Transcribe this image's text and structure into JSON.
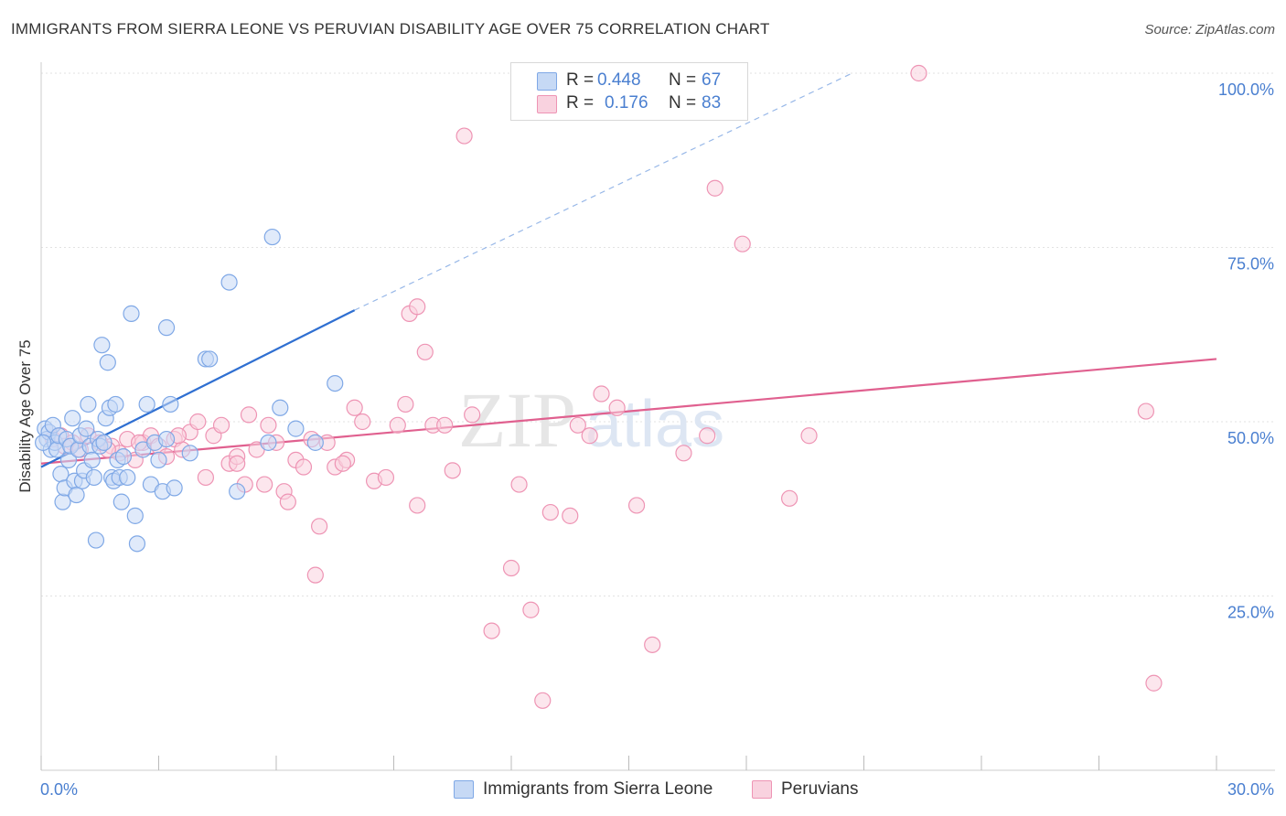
{
  "title": "IMMIGRANTS FROM SIERRA LEONE VS PERUVIAN DISABILITY AGE OVER 75 CORRELATION CHART",
  "source": "Source: ZipAtlas.com",
  "watermark": {
    "zip": "ZIP",
    "atlas": "atlas"
  },
  "legend": {
    "rows": [
      {
        "r_label": "R =",
        "r_value": "0.448",
        "n_label": "N =",
        "n_value": "67",
        "color": "#7fa8e6",
        "fill": "#c6d9f5"
      },
      {
        "r_label": "R =",
        "r_value": "0.176",
        "n_label": "N =",
        "n_value": "83",
        "color": "#ee94b4",
        "fill": "#f9d2df"
      }
    ]
  },
  "bottom_legend": [
    {
      "label": "Immigrants from Sierra Leone",
      "color": "#7fa8e6",
      "fill": "#c6d9f5"
    },
    {
      "label": "Peruvians",
      "color": "#ee94b4",
      "fill": "#f9d2df"
    }
  ],
  "chart_data": {
    "type": "scatter",
    "title": "IMMIGRANTS FROM SIERRA LEONE VS PERUVIAN DISABILITY AGE OVER 75 CORRELATION CHART",
    "xlabel": "",
    "ylabel": "Disability Age Over 75",
    "xlim": [
      0,
      30
    ],
    "ylim": [
      0,
      100
    ],
    "x_tick_labels": [
      "0.0%",
      "30.0%"
    ],
    "y_ticks": [
      25,
      50,
      75,
      100
    ],
    "y_tick_labels": [
      "25.0%",
      "50.0%",
      "75.0%",
      "100.0%"
    ],
    "grid": true,
    "series": [
      {
        "name": "Immigrants from Sierra Leone",
        "color": "#7fa8e6",
        "trend": {
          "x": [
            0,
            8.0
          ],
          "y": [
            43.5,
            66.0
          ],
          "extended_to": [
            20.7,
            100
          ]
        },
        "points": [
          [
            0.1,
            49.0
          ],
          [
            0.15,
            47.5
          ],
          [
            0.2,
            48.5
          ],
          [
            0.25,
            46.0
          ],
          [
            0.3,
            49.5
          ],
          [
            0.35,
            47.0
          ],
          [
            0.4,
            46.0
          ],
          [
            0.45,
            48.0
          ],
          [
            0.5,
            42.5
          ],
          [
            0.55,
            38.5
          ],
          [
            0.6,
            40.5
          ],
          [
            0.65,
            47.5
          ],
          [
            0.7,
            44.5
          ],
          [
            0.75,
            46.5
          ],
          [
            0.8,
            50.5
          ],
          [
            0.85,
            41.5
          ],
          [
            0.9,
            39.5
          ],
          [
            0.95,
            46.0
          ],
          [
            1.0,
            48.0
          ],
          [
            1.05,
            41.5
          ],
          [
            1.1,
            43.0
          ],
          [
            1.15,
            49.0
          ],
          [
            1.2,
            52.5
          ],
          [
            1.25,
            46.5
          ],
          [
            1.3,
            44.5
          ],
          [
            1.35,
            42.0
          ],
          [
            1.4,
            33.0
          ],
          [
            1.45,
            47.5
          ],
          [
            1.5,
            46.5
          ],
          [
            1.55,
            61.0
          ],
          [
            1.6,
            47.0
          ],
          [
            1.65,
            50.5
          ],
          [
            1.7,
            58.5
          ],
          [
            1.75,
            52.0
          ],
          [
            1.8,
            42.0
          ],
          [
            1.85,
            41.5
          ],
          [
            1.9,
            52.5
          ],
          [
            1.95,
            44.5
          ],
          [
            2.0,
            42.0
          ],
          [
            2.05,
            38.5
          ],
          [
            2.1,
            45.0
          ],
          [
            2.2,
            42.0
          ],
          [
            2.3,
            65.5
          ],
          [
            2.4,
            36.5
          ],
          [
            2.45,
            32.5
          ],
          [
            2.6,
            46.0
          ],
          [
            2.7,
            52.5
          ],
          [
            2.8,
            41.0
          ],
          [
            2.9,
            47.0
          ],
          [
            3.0,
            44.5
          ],
          [
            3.1,
            40.0
          ],
          [
            3.2,
            63.5
          ],
          [
            3.3,
            52.5
          ],
          [
            3.2,
            47.5
          ],
          [
            3.4,
            40.5
          ],
          [
            3.8,
            45.5
          ],
          [
            4.2,
            59.0
          ],
          [
            4.3,
            59.0
          ],
          [
            4.8,
            70.0
          ],
          [
            5.0,
            40.0
          ],
          [
            5.9,
            76.5
          ],
          [
            5.8,
            47.0
          ],
          [
            6.1,
            52.0
          ],
          [
            6.5,
            49.0
          ],
          [
            7.0,
            47.0
          ],
          [
            7.5,
            55.5
          ],
          [
            0.05,
            47.0
          ]
        ]
      },
      {
        "name": "Peruvians",
        "color": "#ee94b4",
        "trend": {
          "x": [
            0,
            30
          ],
          "y": [
            44.0,
            59.0
          ]
        },
        "points": [
          [
            0.3,
            47.5
          ],
          [
            0.5,
            48.0
          ],
          [
            0.8,
            47.0
          ],
          [
            1.0,
            46.0
          ],
          [
            1.2,
            48.0
          ],
          [
            1.5,
            47.0
          ],
          [
            1.8,
            46.5
          ],
          [
            2.0,
            45.5
          ],
          [
            2.2,
            47.5
          ],
          [
            2.4,
            44.5
          ],
          [
            2.6,
            47.0
          ],
          [
            2.8,
            48.0
          ],
          [
            3.0,
            46.5
          ],
          [
            3.2,
            45.0
          ],
          [
            3.4,
            47.5
          ],
          [
            3.6,
            46.0
          ],
          [
            3.8,
            48.5
          ],
          [
            4.0,
            50.0
          ],
          [
            4.2,
            42.0
          ],
          [
            4.4,
            48.0
          ],
          [
            4.6,
            49.5
          ],
          [
            4.8,
            44.0
          ],
          [
            5.0,
            45.0
          ],
          [
            5.2,
            41.0
          ],
          [
            5.3,
            51.0
          ],
          [
            5.5,
            46.0
          ],
          [
            5.7,
            41.0
          ],
          [
            5.8,
            49.5
          ],
          [
            6.0,
            47.0
          ],
          [
            6.2,
            40.0
          ],
          [
            6.3,
            38.5
          ],
          [
            6.5,
            44.5
          ],
          [
            6.7,
            43.5
          ],
          [
            6.9,
            47.5
          ],
          [
            7.0,
            28.0
          ],
          [
            7.1,
            35.0
          ],
          [
            7.3,
            47.0
          ],
          [
            7.5,
            43.5
          ],
          [
            7.8,
            44.5
          ],
          [
            8.0,
            52.0
          ],
          [
            8.2,
            50.0
          ],
          [
            8.5,
            41.5
          ],
          [
            8.8,
            42.0
          ],
          [
            9.1,
            49.5
          ],
          [
            9.3,
            52.5
          ],
          [
            9.4,
            65.5
          ],
          [
            9.6,
            38.0
          ],
          [
            9.8,
            60.0
          ],
          [
            10.0,
            49.5
          ],
          [
            10.3,
            49.5
          ],
          [
            10.5,
            43.0
          ],
          [
            10.8,
            91.0
          ],
          [
            11.0,
            51.0
          ],
          [
            11.5,
            20.0
          ],
          [
            12.0,
            29.0
          ],
          [
            12.2,
            41.0
          ],
          [
            12.5,
            23.0
          ],
          [
            12.8,
            10.0
          ],
          [
            13.0,
            37.0
          ],
          [
            13.5,
            36.5
          ],
          [
            13.7,
            49.5
          ],
          [
            14.0,
            48.0
          ],
          [
            14.3,
            54.0
          ],
          [
            14.7,
            52.0
          ],
          [
            15.2,
            38.0
          ],
          [
            15.6,
            18.0
          ],
          [
            16.4,
            45.5
          ],
          [
            16.9,
            100.0
          ],
          [
            17.0,
            48.0
          ],
          [
            17.2,
            83.5
          ],
          [
            17.9,
            75.5
          ],
          [
            19.1,
            39.0
          ],
          [
            19.6,
            48.0
          ],
          [
            22.4,
            100.0
          ],
          [
            28.2,
            51.5
          ],
          [
            28.4,
            12.5
          ],
          [
            9.6,
            66.5
          ],
          [
            5.0,
            44.0
          ],
          [
            3.5,
            48.0
          ],
          [
            2.5,
            47.0
          ],
          [
            1.7,
            46.0
          ],
          [
            0.6,
            46.5
          ],
          [
            7.7,
            44.0
          ]
        ]
      }
    ]
  }
}
